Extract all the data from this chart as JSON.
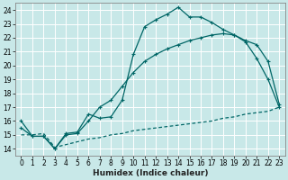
{
  "xlabel": "Humidex (Indice chaleur)",
  "bg_color": "#c8e8e8",
  "grid_color": "#ffffff",
  "line_color": "#006666",
  "xlim": [
    -0.5,
    23.5
  ],
  "ylim": [
    13.5,
    24.5
  ],
  "xticks": [
    0,
    1,
    2,
    3,
    4,
    5,
    6,
    7,
    8,
    9,
    10,
    11,
    12,
    13,
    14,
    15,
    16,
    17,
    18,
    19,
    20,
    21,
    22,
    23
  ],
  "yticks": [
    14,
    15,
    16,
    17,
    18,
    19,
    20,
    21,
    22,
    23,
    24
  ],
  "line1_x": [
    0,
    1,
    2,
    3,
    4,
    5,
    6,
    7,
    8,
    9,
    10,
    11,
    12,
    13,
    14,
    15,
    16,
    17,
    18,
    19,
    20,
    21,
    22,
    23
  ],
  "line1_y": [
    16.0,
    14.9,
    14.9,
    14.0,
    15.1,
    15.2,
    16.5,
    16.2,
    16.3,
    17.5,
    20.8,
    22.8,
    23.3,
    23.7,
    24.2,
    23.5,
    23.5,
    23.1,
    22.6,
    22.2,
    21.7,
    20.5,
    19.0,
    17.0
  ],
  "line2_x": [
    0,
    1,
    2,
    3,
    4,
    5,
    6,
    7,
    8,
    9,
    10,
    11,
    12,
    13,
    14,
    15,
    16,
    17,
    18,
    19,
    20,
    21,
    22,
    23
  ],
  "line2_y": [
    15.5,
    14.9,
    14.9,
    14.0,
    15.0,
    15.1,
    16.0,
    17.0,
    17.5,
    18.5,
    19.5,
    20.3,
    20.8,
    21.2,
    21.5,
    21.8,
    22.0,
    22.2,
    22.3,
    22.2,
    21.8,
    21.5,
    20.3,
    17.2
  ],
  "line3_x": [
    0,
    1,
    2,
    3,
    4,
    5,
    6,
    7,
    8,
    9,
    10,
    11,
    12,
    13,
    14,
    15,
    16,
    17,
    18,
    19,
    20,
    21,
    22,
    23
  ],
  "line3_y": [
    15.0,
    15.0,
    15.1,
    14.1,
    14.3,
    14.5,
    14.7,
    14.8,
    15.0,
    15.1,
    15.3,
    15.4,
    15.5,
    15.6,
    15.7,
    15.8,
    15.9,
    16.0,
    16.2,
    16.3,
    16.5,
    16.6,
    16.7,
    17.0
  ]
}
